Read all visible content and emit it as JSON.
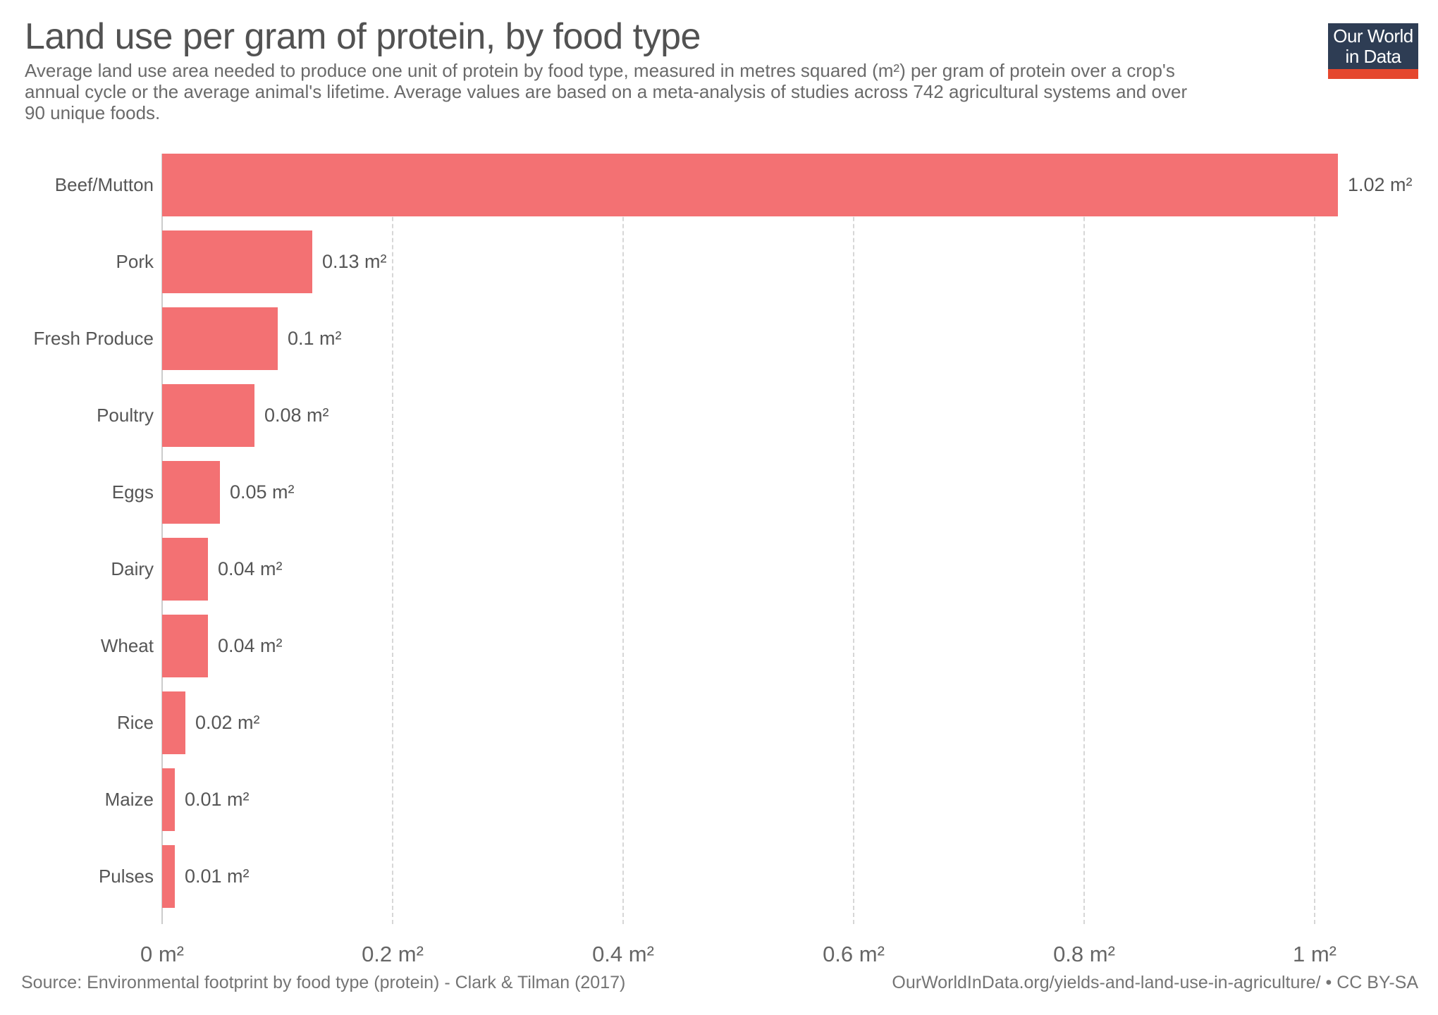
{
  "header": {
    "title": "Land use per gram of protein, by food type",
    "subtitle_lines": [
      "Average land use area needed to produce one unit of protein by food type, measured in metres squared (m²) per gram of protein over a crop's",
      "annual cycle or the average animal's lifetime. Average values are based on a meta-analysis of studies across 742 agricultural systems and over",
      "90 unique foods."
    ],
    "logo": {
      "line1": "Our World",
      "line2": "in Data",
      "bg_color": "#2e3d54",
      "accent_color": "#e5472e"
    }
  },
  "chart_data": {
    "type": "bar",
    "orientation": "horizontal",
    "title": "Land use per gram of protein, by food type",
    "xlabel": "",
    "ylabel": "",
    "unit": "m²",
    "categories": [
      "Beef/Mutton",
      "Pork",
      "Fresh Produce",
      "Poultry",
      "Eggs",
      "Dairy",
      "Wheat",
      "Rice",
      "Maize",
      "Pulses"
    ],
    "values": [
      1.02,
      0.13,
      0.1,
      0.08,
      0.05,
      0.04,
      0.04,
      0.02,
      0.01,
      0.01
    ],
    "value_labels": [
      "1.02 m²",
      "0.13 m²",
      "0.1 m²",
      "0.08 m²",
      "0.05 m²",
      "0.04 m²",
      "0.04 m²",
      "0.02 m²",
      "0.01 m²",
      "0.01 m²"
    ],
    "xlim": [
      0,
      1.1
    ],
    "xticks": {
      "values": [
        0,
        0.2,
        0.4,
        0.6,
        0.8,
        1.0
      ],
      "labels": [
        "0 m²",
        "0.2 m²",
        "0.4 m²",
        "0.6 m²",
        "0.8 m²",
        "1 m²"
      ]
    },
    "grid": "vertical-dashed",
    "legend": "none",
    "bar_color": "#f37173"
  },
  "footer": {
    "source": "Source: Environmental footprint by food type (protein) - Clark & Tilman (2017)",
    "attribution": "OurWorldInData.org/yields-and-land-use-in-agriculture/ • CC BY-SA"
  }
}
